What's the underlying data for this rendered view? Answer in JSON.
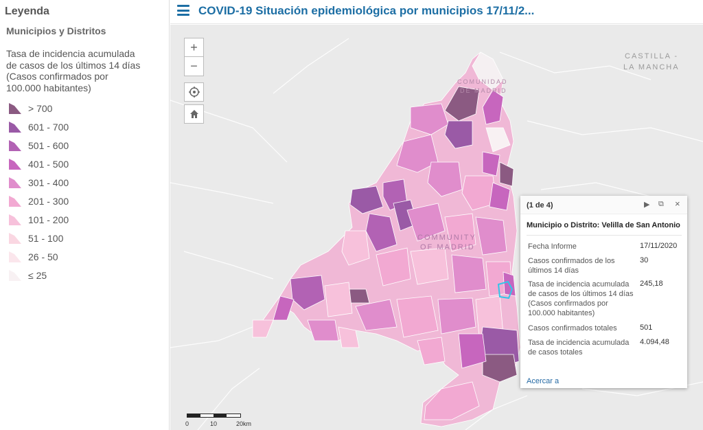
{
  "legend": {
    "title": "Leyenda",
    "layer": "Municipios y Distritos",
    "description": "Tasa de incidencia acumulada de casos de los últimos 14 días (Casos confirmados por 100.000 habitantes)",
    "items": [
      {
        "label": "> 700",
        "color": "#8b5a82"
      },
      {
        "label": "601 - 700",
        "color": "#9a5aa6"
      },
      {
        "label": "501 - 600",
        "color": "#b262b4"
      },
      {
        "label": "401 - 500",
        "color": "#c766be"
      },
      {
        "label": "301 - 400",
        "color": "#e08dcc"
      },
      {
        "label": "201 - 300",
        "color": "#f2a9d2"
      },
      {
        "label": "101 - 200",
        "color": "#f7c1db"
      },
      {
        "label": "51 - 100",
        "color": "#fad7e2"
      },
      {
        "label": "26 - 50",
        "color": "#fbe6ec"
      },
      {
        "label": "≤ 25",
        "color": "#f8f1f3"
      }
    ]
  },
  "header": {
    "title": "COVID-19 Situación epidemiológica por municipios 17/11/2..."
  },
  "map": {
    "region_labels": [
      "CASTILLA -",
      "LA MANCHA",
      "COMMUNITY",
      "OF MADRID",
      "COMUNIDAD",
      "DE MADRID"
    ],
    "controls": {
      "zoom_in": "+",
      "zoom_out": "−"
    }
  },
  "popup": {
    "count": "(1 de 4)",
    "name": "Municipio o Distrito: Velilla de San Antonio",
    "fields": [
      {
        "key": "Fecha Informe",
        "value": "17/11/2020"
      },
      {
        "key": "Casos confirmados de los últimos 14 días",
        "value": "30"
      },
      {
        "key": "Tasa de incidencia acumulada de casos de los últimos 14 días (Casos confirmados por 100.000 habitantes)",
        "value": "245,18"
      },
      {
        "key": "Casos confirmados totales",
        "value": "501"
      },
      {
        "key": "Tasa de incidencia acumulada de casos totales",
        "value": "4.094,48"
      }
    ],
    "zoom_label": "Acercar a"
  },
  "scale": {
    "ticks": [
      "0",
      "10",
      "20km"
    ]
  }
}
